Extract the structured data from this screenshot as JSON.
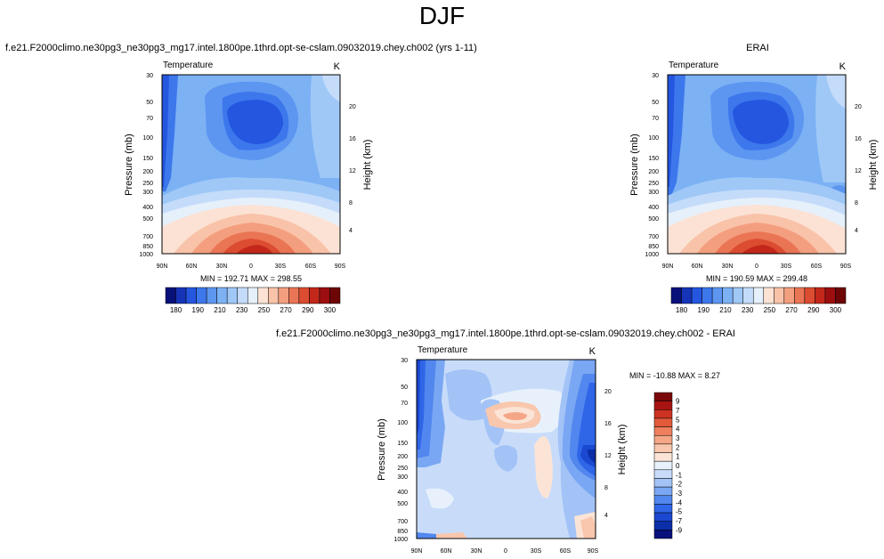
{
  "page": {
    "title": "DJF",
    "left_subtitle": "f.e21.F2000climo.ne30pg3_ne30pg3_mg17.intel.1800pe.1thrd.opt-se-cslam.09032019.chey.ch002 (yrs 1-11)",
    "right_subtitle": "ERAI",
    "bottom_subtitle": "f.e21.F2000climo.ne30pg3_ne30pg3_mg17.intel.1800pe.1thrd.opt-se-cslam.09032019.chey.ch002 - ERAI"
  },
  "colors": {
    "abs_scale": [
      "#08117a",
      "#1634b8",
      "#2456e0",
      "#3d77ec",
      "#5d96f1",
      "#7cb1f4",
      "#9fc8f7",
      "#c4dcfa",
      "#e6f0fb",
      "#fbe2d4",
      "#f9c3a9",
      "#f39f7f",
      "#ea7555",
      "#dc4c31",
      "#c3271a",
      "#9c0e0f",
      "#6e0606"
    ],
    "diff_scale": [
      "#08117a",
      "#0b2ea9",
      "#1a48d1",
      "#2f66e8",
      "#5187ee",
      "#7aa7f3",
      "#a3c3f7",
      "#c8dcfa",
      "#e8f1fb",
      "#fbe4d6",
      "#f8c7ad",
      "#f4a686",
      "#ee805e",
      "#e35a3a",
      "#cd3322",
      "#a81412",
      "#7a0808"
    ]
  },
  "chart_data": [
    {
      "type": "heatmap",
      "subtitle": "f.e21.F2000climo.ne30pg3_ne30pg3_mg17.intel.1800pe.1thrd.opt-se-cslam.09032019.chey.ch002 (yrs 1-11)",
      "left_label": "Temperature",
      "right_label": "K",
      "ylabel": "Pressure (mb)",
      "ylabel_right": "Height (km)",
      "x_ticks": [
        "90N",
        "60N",
        "30N",
        "0",
        "30S",
        "60S",
        "90S"
      ],
      "y_ticks": [
        "30",
        "50",
        "70",
        "100",
        "150",
        "200",
        "250",
        "300",
        "400",
        "500",
        "700",
        "850",
        "1000"
      ],
      "y_ticks_right": [
        "20",
        "16",
        "12",
        "8",
        "4"
      ],
      "stats": "MIN = 192.71   MAX = 298.55",
      "colorbar_labels": [
        "180",
        "190",
        "210",
        "230",
        "250",
        "270",
        "290",
        "300"
      ]
    },
    {
      "type": "heatmap",
      "subtitle": "ERAI",
      "left_label": "Temperature",
      "right_label": "K",
      "ylabel": "Pressure (mb)",
      "ylabel_right": "Height (km)",
      "x_ticks": [
        "90N",
        "60N",
        "30N",
        "0",
        "30S",
        "60S",
        "90S"
      ],
      "y_ticks": [
        "30",
        "50",
        "70",
        "100",
        "150",
        "200",
        "250",
        "300",
        "400",
        "500",
        "700",
        "850",
        "1000"
      ],
      "y_ticks_right": [
        "20",
        "16",
        "12",
        "8",
        "4"
      ],
      "stats": "MIN = 190.59   MAX = 299.48",
      "colorbar_labels": [
        "180",
        "190",
        "210",
        "230",
        "250",
        "270",
        "290",
        "300"
      ]
    },
    {
      "type": "heatmap",
      "subtitle": "f.e21.F2000climo.ne30pg3_ne30pg3_mg17.intel.1800pe.1thrd.opt-se-cslam.09032019.chey.ch002 - ERAI",
      "left_label": "Temperature",
      "right_label": "K",
      "ylabel": "Pressure (mb)",
      "ylabel_right": "Height (km)",
      "x_ticks": [
        "90N",
        "60N",
        "30N",
        "0",
        "30S",
        "60S",
        "90S"
      ],
      "y_ticks": [
        "30",
        "50",
        "70",
        "100",
        "150",
        "200",
        "250",
        "300",
        "400",
        "500",
        "700",
        "850",
        "1000"
      ],
      "y_ticks_right": [
        "20",
        "16",
        "12",
        "8",
        "4"
      ],
      "stats": "MIN = -10.88   MAX =   8.27",
      "colorbar_labels": [
        "9",
        "7",
        "5",
        "4",
        "3",
        "2",
        "1",
        "0",
        "-1",
        "-2",
        "-3",
        "-4",
        "-5",
        "-7",
        "-9"
      ]
    }
  ]
}
